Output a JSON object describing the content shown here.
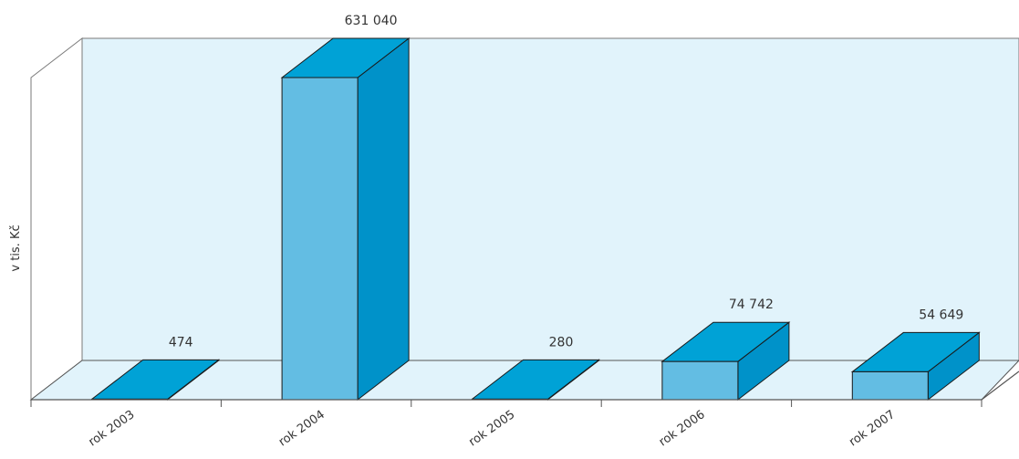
{
  "chart_data": {
    "type": "bar",
    "style": "3d",
    "categories": [
      "rok 2003",
      "rok 2004",
      "rok 2005",
      "rok 2006",
      "rok 2007"
    ],
    "values": [
      474,
      631040,
      280,
      74742,
      54649
    ],
    "value_labels": [
      "474",
      "631 040",
      "280",
      "74 742",
      "54 649"
    ],
    "title": "",
    "xlabel": "",
    "ylabel": "v tis. Kč",
    "ylim": [
      0,
      631040
    ],
    "grid": false,
    "legend": "none",
    "colors": {
      "front": "#63bde3",
      "top": "#00a2d6",
      "side": "#0092c9",
      "back_wall": "#e1f3fb",
      "floor": "#e1f3fb",
      "axis": "#555555"
    }
  }
}
